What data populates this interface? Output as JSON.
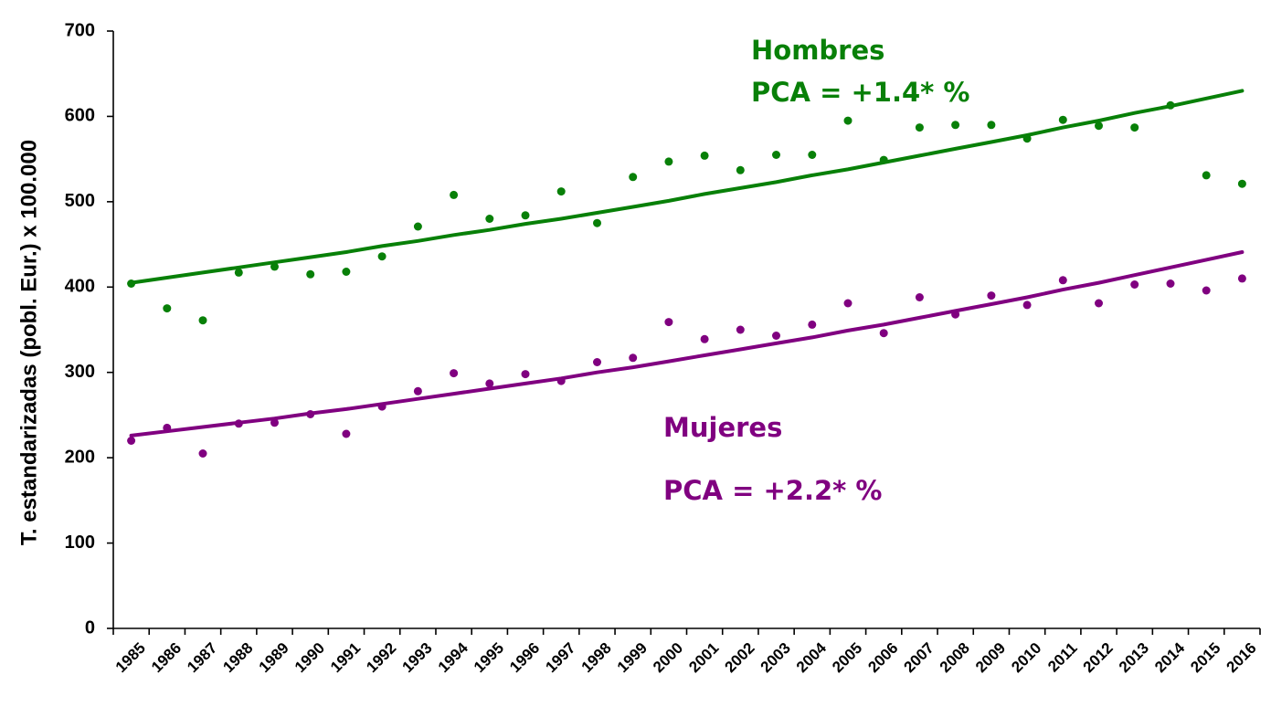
{
  "chart_data": {
    "type": "scatter",
    "ylabel": "T. estandarizadas (pobl. Eur.) x 100.000",
    "xlabel": "",
    "ylim": [
      0,
      700
    ],
    "yticks": [
      0,
      100,
      200,
      300,
      400,
      500,
      600,
      700
    ],
    "x": [
      "1985",
      "1986",
      "1987",
      "1988",
      "1989",
      "1990",
      "1991",
      "1992",
      "1993",
      "1994",
      "1995",
      "1996",
      "1997",
      "1998",
      "1999",
      "2000",
      "2001",
      "2002",
      "2003",
      "2004",
      "2005",
      "2006",
      "2007",
      "2008",
      "2009",
      "2010",
      "2011",
      "2012",
      "2013",
      "2014",
      "2015",
      "2016"
    ],
    "grid": false,
    "series": [
      {
        "name": "Hombres",
        "annotation": "PCA = +1.4* %",
        "color": "#088008",
        "values": [
          404,
          375,
          361,
          417,
          424,
          415,
          418,
          436,
          471,
          508,
          480,
          484,
          512,
          475,
          529,
          547,
          554,
          537,
          555,
          555,
          595,
          549,
          587,
          590,
          590,
          574,
          596,
          589,
          587,
          613,
          531,
          521
        ],
        "trend": [
          405,
          411,
          417,
          423,
          429,
          435,
          441,
          448,
          454,
          461,
          467,
          474,
          480,
          487,
          494,
          501,
          509,
          516,
          523,
          531,
          538,
          546,
          554,
          562,
          570,
          578,
          587,
          595,
          604,
          612,
          621,
          630
        ]
      },
      {
        "name": "Mujeres",
        "annotation": "PCA = +2.2* %",
        "color": "#800080",
        "values": [
          220,
          235,
          205,
          240,
          241,
          251,
          228,
          260,
          278,
          299,
          287,
          298,
          290,
          312,
          317,
          359,
          339,
          350,
          343,
          356,
          381,
          346,
          388,
          368,
          390,
          379,
          408,
          381,
          403,
          404,
          396,
          410
        ],
        "trend": [
          226,
          231,
          236,
          241,
          246,
          252,
          257,
          263,
          269,
          275,
          281,
          287,
          293,
          300,
          306,
          313,
          320,
          327,
          334,
          341,
          349,
          356,
          364,
          372,
          380,
          388,
          397,
          405,
          414,
          423,
          432,
          441
        ]
      }
    ]
  }
}
